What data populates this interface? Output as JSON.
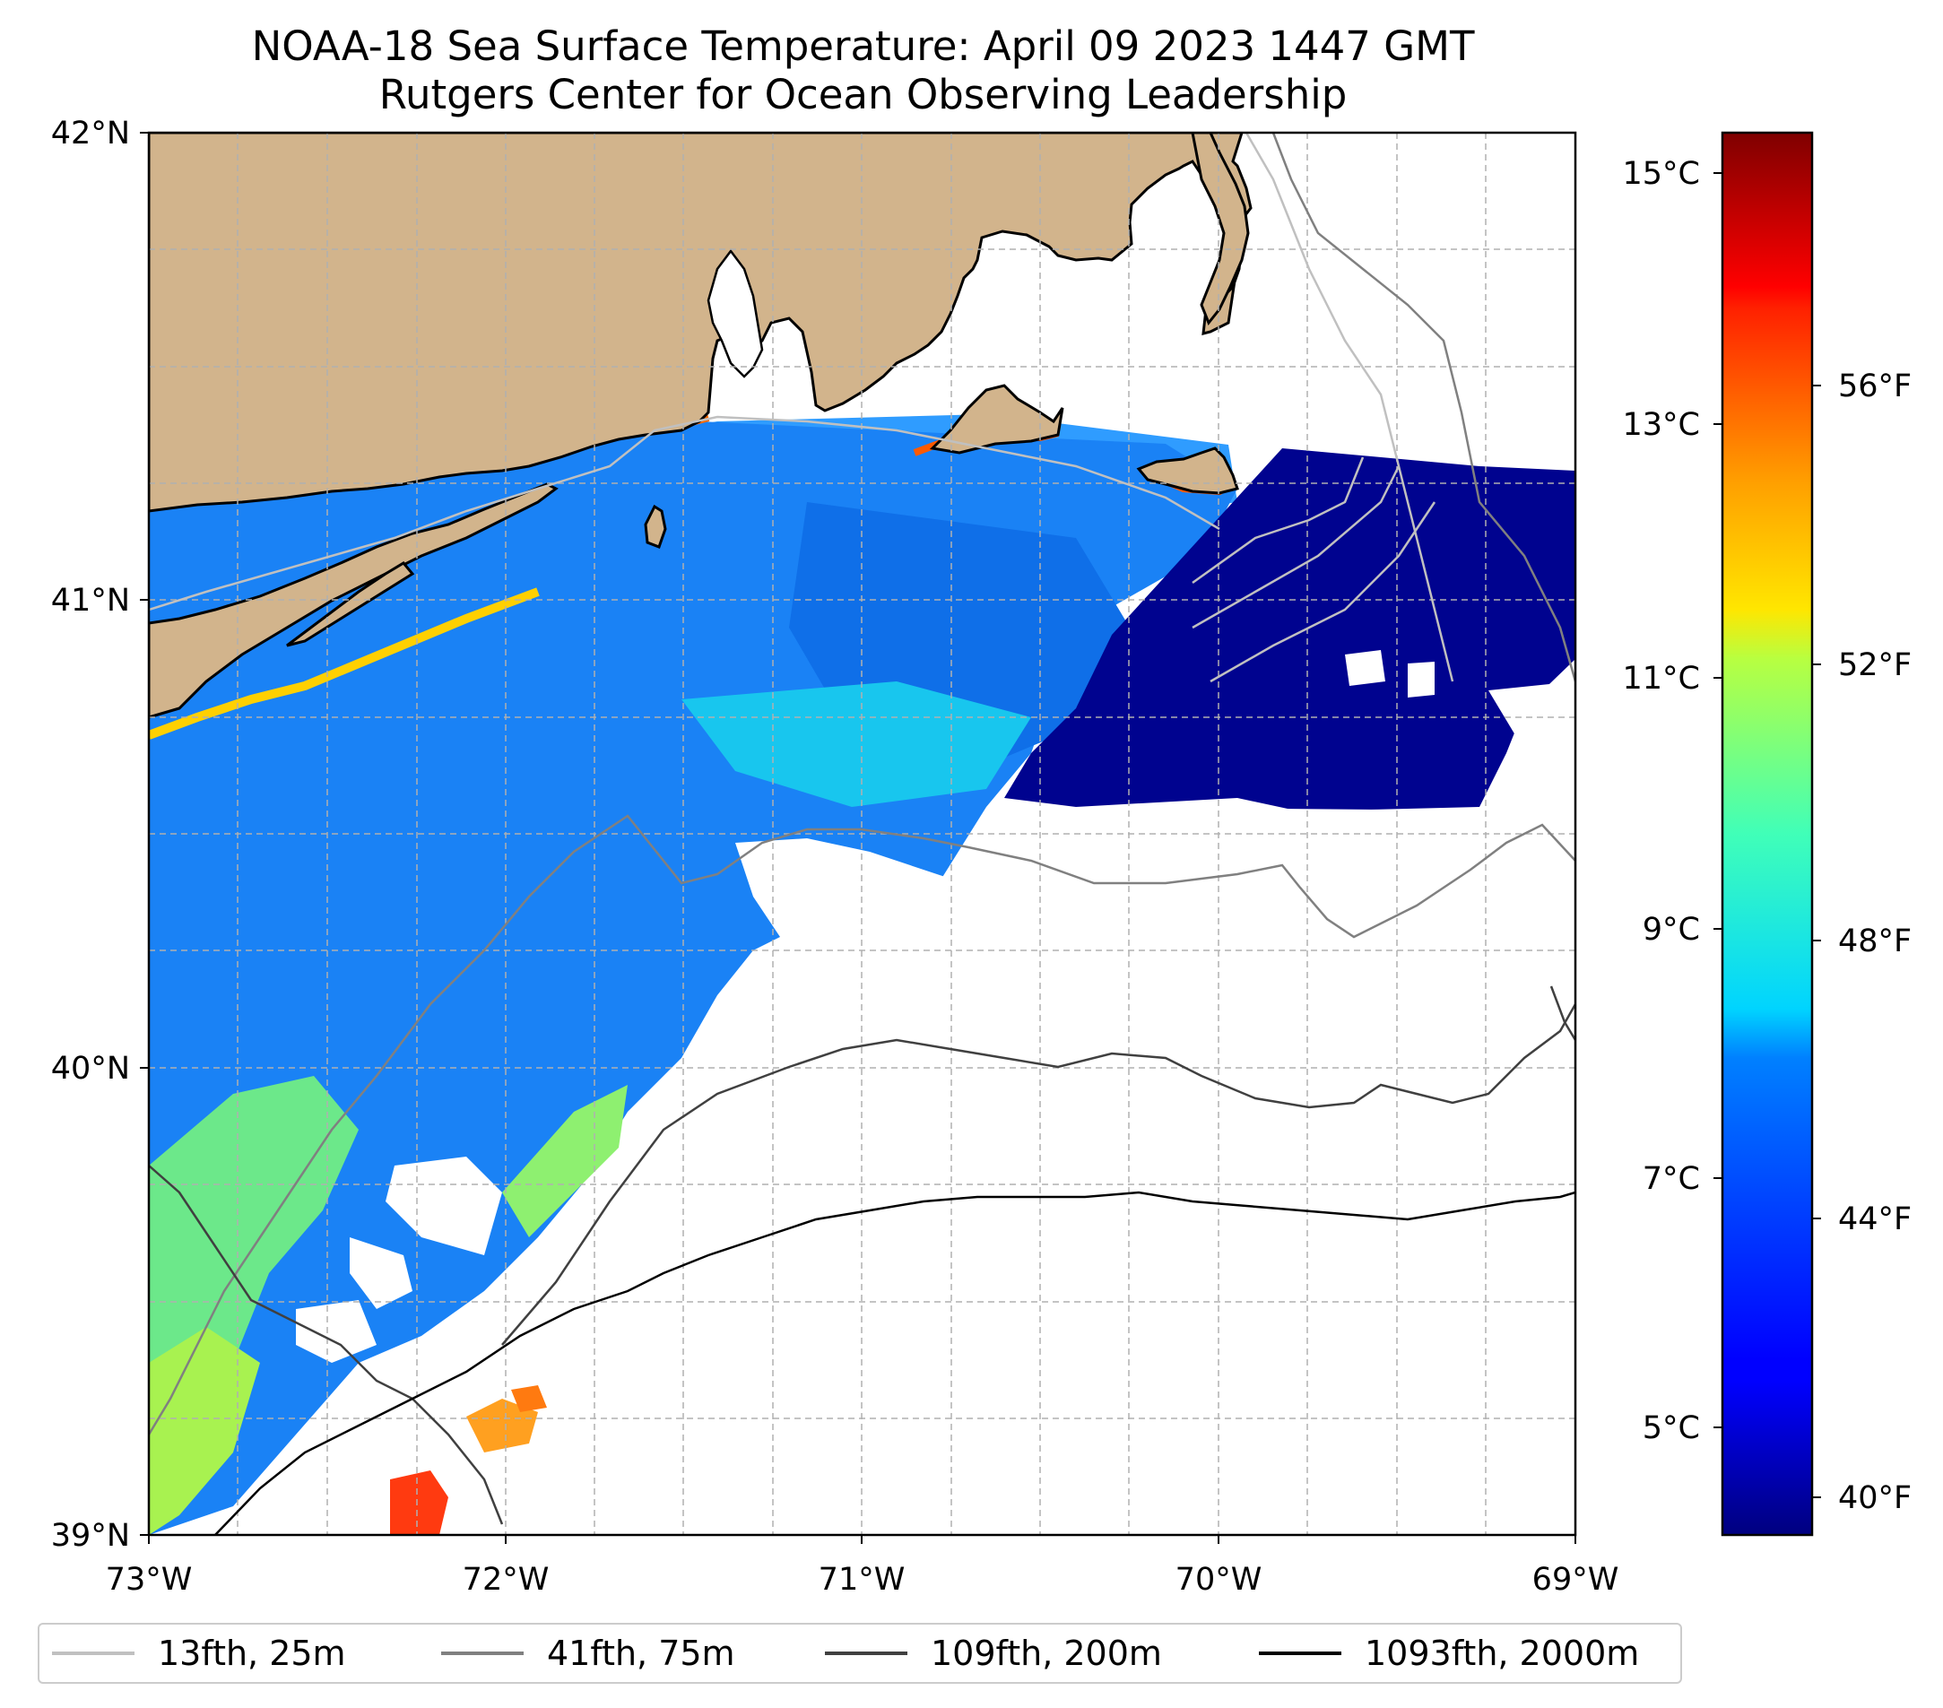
{
  "title": {
    "line1": "NOAA-18 Sea Surface Temperature: April 09 2023 1447 GMT",
    "line2": "Rutgers Center for Ocean Observing Leadership"
  },
  "map": {
    "lat_range": [
      39,
      42
    ],
    "lon_range": [
      -73,
      -69
    ],
    "lat_ticks": [
      "42°N",
      "41°N",
      "40°N",
      "39°N"
    ],
    "lon_ticks": [
      "73°W",
      "72°W",
      "71°W",
      "70°W",
      "69°W"
    ],
    "land_color": "#d2b48c",
    "gridlines": "dashed"
  },
  "colorbar": {
    "colormap": "jet",
    "celsius_ticks": [
      "15°C",
      "13°C",
      "11°C",
      "9°C",
      "7°C",
      "5°C"
    ],
    "fahrenheit_ticks": [
      "56°F",
      "52°F",
      "48°F",
      "44°F",
      "40°F"
    ],
    "range_celsius": [
      4.3,
      15.3
    ]
  },
  "legend": {
    "items": [
      {
        "label": "13fth, 25m",
        "color": "#c0c0c0"
      },
      {
        "label": "41fth, 75m",
        "color": "#808080"
      },
      {
        "label": "109fth, 200m",
        "color": "#404040"
      },
      {
        "label": "1093fth, 2000m",
        "color": "#000000"
      }
    ]
  }
}
